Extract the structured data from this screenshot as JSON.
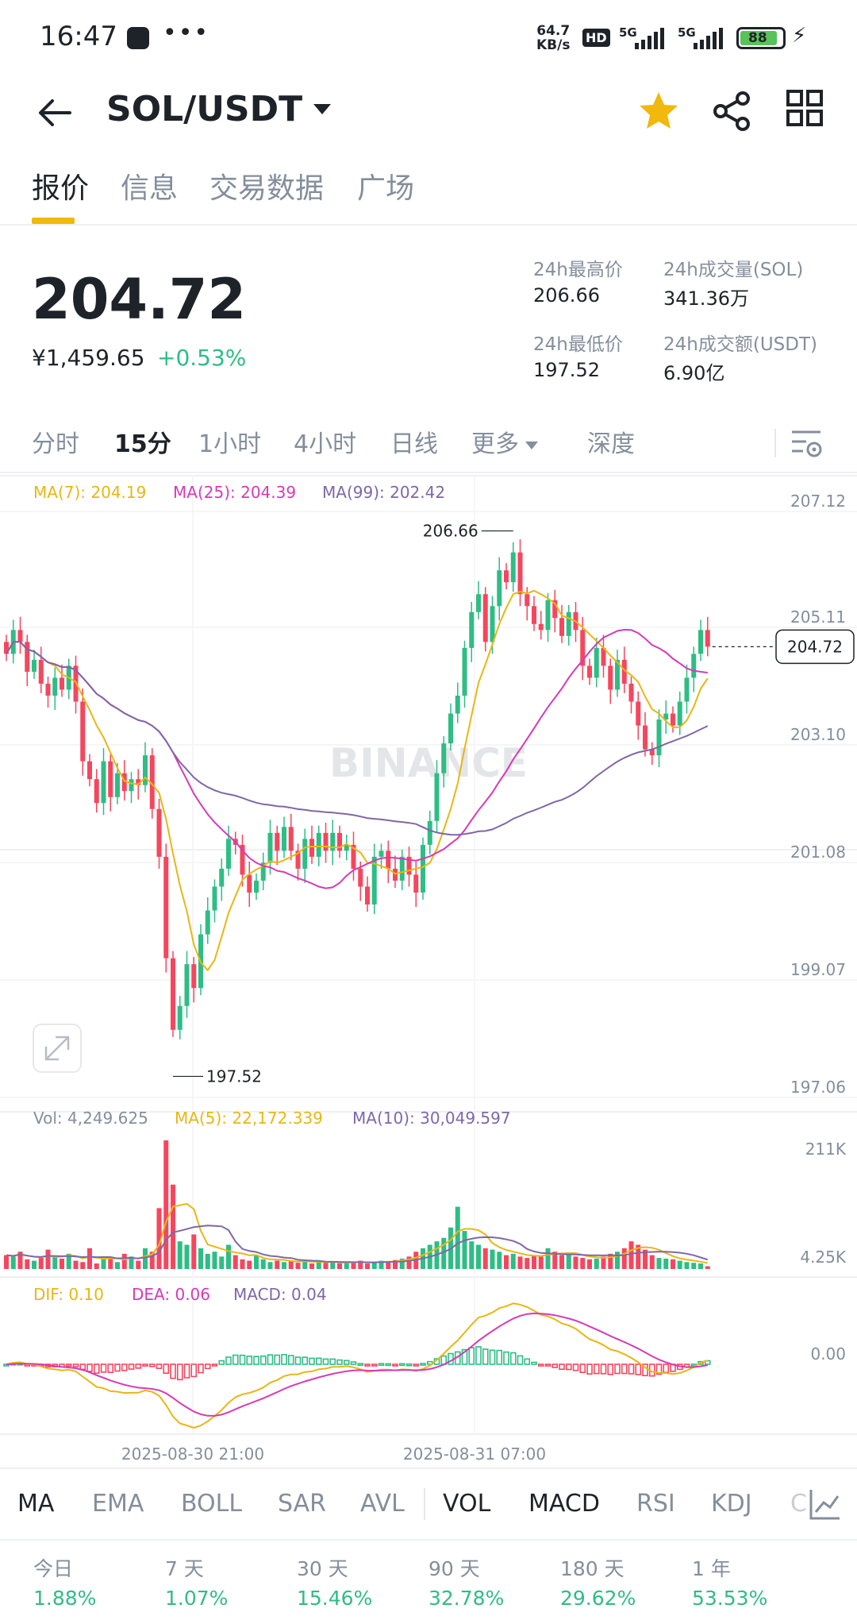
{
  "status_bar": {
    "time": "16:47",
    "net_speed_value": "64.7",
    "net_speed_unit": "KB/s",
    "hd_label": "HD",
    "sim1_label": "5G",
    "sim2_label": "5G",
    "battery": "88",
    "more_icon": "more-dots-icon",
    "charging_icon": "bolt-icon"
  },
  "header": {
    "pair": "SOL/USDT",
    "favorited": true,
    "accent_color": "#f0b90b"
  },
  "tabs": [
    {
      "label": "报价",
      "active": true
    },
    {
      "label": "信息",
      "active": false
    },
    {
      "label": "交易数据",
      "active": false
    },
    {
      "label": "广场",
      "active": false
    }
  ],
  "ticker": {
    "last_price": "204.72",
    "cny_price": "¥1,459.65",
    "change_pct": "+0.53%",
    "high_label": "24h最高价",
    "high_value": "206.66",
    "low_label": "24h最低价",
    "low_value": "197.52",
    "vol_label": "24h成交量(SOL)",
    "vol_value": "341.36万",
    "turnover_label": "24h成交额(USDT)",
    "turnover_value": "6.90亿"
  },
  "intervals": {
    "items": [
      "分时",
      "15分",
      "1小时",
      "4小时",
      "日线"
    ],
    "active": "15分",
    "more": "更多",
    "depth": "深度"
  },
  "chart_data": {
    "type": "candlestick",
    "interval": "15分",
    "price_ticks": [
      "207.12",
      "205.11",
      "203.10",
      "201.08",
      "199.07",
      "197.06"
    ],
    "ylim": [
      197.06,
      207.12
    ],
    "high_marker": "206.66",
    "low_marker": "197.52",
    "last_price_tag": "204.72",
    "ma_legend": {
      "ma7": "MA(7): 204.19",
      "ma25": "MA(25): 204.39",
      "ma99": "MA(99): 202.42"
    },
    "vol_legend": {
      "vol": "Vol: 4,249.625",
      "ma5": "MA(5): 22,172.339",
      "ma10": "MA(10): 30,049.597"
    },
    "vol_ticks": [
      "211K",
      "4.25K"
    ],
    "macd_legend": {
      "dif": "DIF: 0.10",
      "dea": "DEA: 0.06",
      "macd": "MACD: 0.04"
    },
    "macd_ticks": [
      "0.00"
    ],
    "time_labels": [
      "2025-08-30 21:00",
      "2025-08-31 07:00"
    ],
    "watermark": "BINANCE",
    "colors": {
      "up": "#2ebd85",
      "down": "#f6465d",
      "ma7": "#e8b714",
      "ma25": "#d63ab7",
      "ma99": "#7f67a8"
    },
    "closes": [
      204.6,
      205.0,
      204.8,
      204.3,
      204.5,
      204.1,
      203.9,
      204.2,
      204.0,
      204.4,
      203.8,
      202.8,
      202.5,
      202.1,
      202.8,
      202.2,
      202.6,
      202.3,
      202.5,
      202.4,
      202.9,
      202.0,
      201.2,
      199.5,
      198.3,
      198.7,
      199.4,
      199.0,
      199.9,
      200.3,
      200.7,
      201.0,
      201.5,
      201.4,
      200.9,
      200.6,
      200.8,
      201.1,
      201.6,
      201.3,
      201.7,
      201.3,
      201.0,
      201.5,
      201.2,
      201.6,
      201.3,
      201.6,
      201.3,
      201.4,
      201.0,
      200.7,
      200.4,
      201.2,
      201.3,
      201.0,
      200.8,
      201.2,
      200.9,
      200.6,
      201.4,
      201.8,
      202.6,
      203.1,
      203.6,
      203.9,
      204.7,
      205.3,
      205.6,
      204.8,
      205.4,
      206.0,
      205.8,
      206.3,
      205.6,
      205.4,
      205.1,
      205.0,
      205.5,
      205.2,
      204.9,
      205.3,
      205.0,
      204.4,
      204.2,
      204.7,
      204.4,
      204.0,
      204.5,
      204.1,
      203.8,
      203.4,
      203.0,
      202.9,
      203.5,
      203.6,
      203.4,
      203.8,
      204.2,
      204.6,
      205.0,
      204.72
    ],
    "volume": [
      20,
      18,
      25,
      14,
      12,
      16,
      28,
      18,
      15,
      22,
      12,
      10,
      30,
      8,
      14,
      15,
      10,
      22,
      18,
      12,
      30,
      25,
      88,
      186,
      122,
      40,
      35,
      50,
      30,
      22,
      25,
      18,
      35,
      20,
      14,
      12,
      20,
      14,
      10,
      12,
      10,
      12,
      9,
      13,
      8,
      10,
      9,
      11,
      8,
      10,
      9,
      12,
      8,
      10,
      12,
      11,
      13,
      15,
      18,
      25,
      30,
      35,
      40,
      45,
      60,
      90,
      55,
      40,
      35,
      30,
      28,
      25,
      20,
      22,
      18,
      16,
      20,
      18,
      30,
      25,
      20,
      22,
      18,
      16,
      14,
      15,
      18,
      22,
      25,
      30,
      40,
      35,
      28,
      20,
      16,
      15,
      14,
      12,
      10,
      9,
      8,
      4
    ]
  },
  "indicators": {
    "items": [
      "MA",
      "EMA",
      "BOLL",
      "SAR",
      "AVL",
      "VOL",
      "MACD",
      "RSI",
      "KDJ",
      "C"
    ],
    "active": [
      "MA",
      "VOL",
      "MACD"
    ]
  },
  "performance": [
    {
      "label": "今日",
      "value": "1.88%"
    },
    {
      "label": "7 天",
      "value": "1.07%"
    },
    {
      "label": "30 天",
      "value": "15.46%"
    },
    {
      "label": "90 天",
      "value": "32.78%"
    },
    {
      "label": "180 天",
      "value": "29.62%"
    },
    {
      "label": "1 年",
      "value": "53.53%"
    }
  ]
}
